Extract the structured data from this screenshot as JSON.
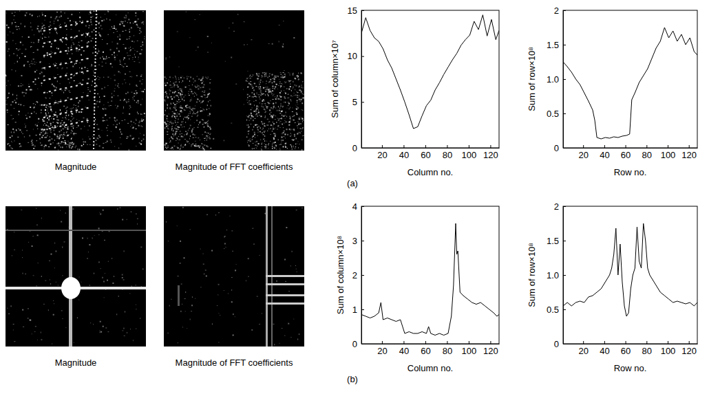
{
  "figure": {
    "rows": [
      {
        "label": "(a)",
        "images": [
          "Magnitude",
          "Magnitude of  FFT coefficients"
        ]
      },
      {
        "label": "(b)",
        "images": [
          "Magnitude",
          "Magnitude of  FFT coefficients"
        ]
      }
    ]
  },
  "chart_data": [
    {
      "type": "line",
      "color": "#000000",
      "xlabel": "Column no.",
      "ylabel": "Sum of column×10⁷",
      "xlim": [
        1,
        128
      ],
      "xticks": [
        20,
        40,
        60,
        80,
        100,
        120
      ],
      "ylim": [
        0,
        15
      ],
      "yticks": [
        0,
        5,
        10,
        15
      ],
      "x": [
        1,
        5,
        9,
        13,
        17,
        21,
        25,
        29,
        33,
        37,
        41,
        45,
        49,
        53,
        57,
        61,
        65,
        69,
        73,
        77,
        81,
        85,
        89,
        93,
        97,
        101,
        105,
        109,
        113,
        117,
        121,
        125,
        128
      ],
      "values": [
        12.5,
        14.2,
        12.8,
        12.0,
        11.6,
        10.8,
        9.6,
        8.7,
        7.5,
        6.3,
        5.0,
        3.6,
        2.1,
        2.3,
        3.5,
        4.6,
        5.2,
        6.3,
        7.1,
        8.0,
        8.8,
        9.6,
        10.3,
        11.2,
        11.8,
        12.3,
        13.8,
        12.9,
        14.5,
        12.2,
        14.0,
        11.8,
        12.8
      ]
    },
    {
      "type": "line",
      "color": "#000000",
      "xlabel": "Row no.",
      "ylabel": "Sum of row×10⁸",
      "xlim": [
        1,
        128
      ],
      "xticks": [
        20,
        40,
        60,
        80,
        100,
        120
      ],
      "ylim": [
        0,
        2
      ],
      "yticks": [
        0,
        0.5,
        {
          "value": 1,
          "label": "1.0"
        },
        1.5,
        2
      ],
      "x": [
        1,
        5,
        9,
        13,
        17,
        21,
        25,
        29,
        31,
        33,
        37,
        41,
        45,
        49,
        53,
        57,
        61,
        64,
        66,
        69,
        73,
        77,
        81,
        85,
        89,
        93,
        97,
        101,
        105,
        109,
        113,
        117,
        121,
        125,
        128
      ],
      "values": [
        1.25,
        1.18,
        1.1,
        1.0,
        0.92,
        0.8,
        0.68,
        0.55,
        0.4,
        0.15,
        0.13,
        0.15,
        0.14,
        0.16,
        0.15,
        0.17,
        0.18,
        0.2,
        0.7,
        0.8,
        0.95,
        1.05,
        1.15,
        1.3,
        1.45,
        1.55,
        1.75,
        1.6,
        1.7,
        1.55,
        1.65,
        1.5,
        1.6,
        1.4,
        1.35
      ]
    },
    {
      "type": "line",
      "color": "#000000",
      "xlabel": "Column no.",
      "ylabel": "Sum of column×10⁸",
      "xlim": [
        1,
        128
      ],
      "xticks": [
        20,
        40,
        60,
        80,
        100,
        120
      ],
      "ylim": [
        0,
        4
      ],
      "yticks": [
        0,
        1,
        2,
        3,
        4
      ],
      "x": [
        1,
        5,
        9,
        13,
        17,
        19,
        21,
        25,
        29,
        33,
        37,
        41,
        45,
        49,
        53,
        57,
        61,
        63,
        65,
        69,
        73,
        77,
        81,
        84,
        86,
        88,
        89,
        90,
        92,
        95,
        99,
        103,
        107,
        111,
        115,
        119,
        123,
        126,
        128
      ],
      "values": [
        0.85,
        0.8,
        0.75,
        0.8,
        0.9,
        1.2,
        0.7,
        0.75,
        0.7,
        0.65,
        0.7,
        0.3,
        0.35,
        0.3,
        0.3,
        0.35,
        0.3,
        0.5,
        0.3,
        0.25,
        0.3,
        0.25,
        0.3,
        0.8,
        1.7,
        3.5,
        2.6,
        2.7,
        1.5,
        1.4,
        1.3,
        1.2,
        1.15,
        1.2,
        1.1,
        1.0,
        0.9,
        0.8,
        0.85
      ]
    },
    {
      "type": "line",
      "color": "#000000",
      "xlabel": "Row no.",
      "ylabel": "Sum of row×10⁸",
      "xlim": [
        1,
        128
      ],
      "xticks": [
        20,
        40,
        60,
        80,
        100,
        120
      ],
      "ylim": [
        0,
        2
      ],
      "yticks": [
        0,
        0.5,
        {
          "value": 1,
          "label": "1.0"
        },
        1.5,
        2
      ],
      "x": [
        1,
        5,
        9,
        13,
        17,
        21,
        25,
        29,
        33,
        37,
        41,
        45,
        47,
        49,
        51,
        53,
        55,
        57,
        59,
        61,
        63,
        65,
        67,
        69,
        71,
        73,
        75,
        77,
        79,
        81,
        83,
        85,
        89,
        93,
        97,
        101,
        105,
        109,
        113,
        117,
        121,
        125,
        128
      ],
      "values": [
        0.55,
        0.6,
        0.55,
        0.6,
        0.62,
        0.6,
        0.68,
        0.7,
        0.75,
        0.8,
        0.9,
        1.0,
        1.1,
        1.3,
        1.68,
        1.0,
        1.45,
        0.9,
        0.55,
        0.4,
        0.45,
        0.8,
        1.0,
        1.1,
        1.7,
        1.2,
        1.1,
        1.75,
        1.5,
        1.1,
        1.0,
        0.95,
        0.85,
        0.75,
        0.7,
        0.65,
        0.6,
        0.62,
        0.6,
        0.58,
        0.6,
        0.55,
        0.6
      ]
    }
  ]
}
